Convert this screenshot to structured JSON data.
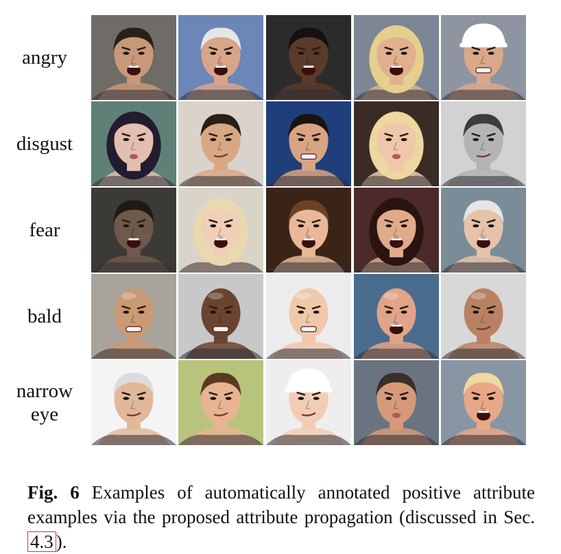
{
  "rows": [
    {
      "label_lines": [
        "angry"
      ],
      "cells": [
        {
          "bg": "#6f6b66",
          "skin": "#c89878",
          "hair": "#2a201a",
          "hair_style": "short",
          "mouth": "open"
        },
        {
          "bg": "#6c86b8",
          "skin": "#d8a48a",
          "hair": "#e6e6e6",
          "hair_style": "short",
          "mouth": "open"
        },
        {
          "bg": "#2b2b2b",
          "skin": "#5a3a28",
          "hair": "#161010",
          "hair_style": "short",
          "mouth": "open"
        },
        {
          "bg": "#7c8694",
          "skin": "#e2b08e",
          "hair": "#e6cf8e",
          "hair_style": "long",
          "mouth": "open"
        },
        {
          "bg": "#8e95a0",
          "skin": "#d9a889",
          "hair": "#ffffff",
          "hair_style": "cap",
          "mouth": "teeth"
        }
      ]
    },
    {
      "label_lines": [
        "disgust"
      ],
      "cells": [
        {
          "bg": "#5f8076",
          "skin": "#e2bfb0",
          "hair": "#221c2e",
          "hair_style": "long",
          "mouth": "pout"
        },
        {
          "bg": "#d9d3cb",
          "skin": "#d8a884",
          "hair": "#2a1e16",
          "hair_style": "short",
          "mouth": "smirk"
        },
        {
          "bg": "#1f3f7a",
          "skin": "#d8a482",
          "hair": "#1a1410",
          "hair_style": "short",
          "mouth": "teeth"
        },
        {
          "bg": "#3a2c24",
          "skin": "#f0c7aa",
          "hair": "#ecd7a0",
          "hair_style": "long",
          "mouth": "pout"
        },
        {
          "bg": "#d2d2d2",
          "skin": "#b4b4b4",
          "hair": "#3c3c3c",
          "hair_style": "short",
          "mouth": "smirk"
        }
      ]
    },
    {
      "label_lines": [
        "fear"
      ],
      "cells": [
        {
          "bg": "#3c3a36",
          "skin": "#6e5a4a",
          "hair": "#1e1a16",
          "hair_style": "short",
          "mouth": "open"
        },
        {
          "bg": "#d9d4c8",
          "skin": "#efcfb6",
          "hair": "#ead8b0",
          "hair_style": "long",
          "mouth": "open"
        },
        {
          "bg": "#3a2418",
          "skin": "#e8b898",
          "hair": "#6a4228",
          "hair_style": "short",
          "mouth": "open"
        },
        {
          "bg": "#4c2a2a",
          "skin": "#e0ab8a",
          "hair": "#2a1410",
          "hair_style": "long",
          "mouth": "open"
        },
        {
          "bg": "#7a8c98",
          "skin": "#e6c2aa",
          "hair": "#e6e6e6",
          "hair_style": "short",
          "mouth": "open"
        }
      ]
    },
    {
      "label_lines": [
        "bald"
      ],
      "cells": [
        {
          "bg": "#a8a49c",
          "skin": "#c99a74",
          "hair": "#c99a74",
          "hair_style": "bald",
          "mouth": "teeth"
        },
        {
          "bg": "#c8c8c8",
          "skin": "#6a4430",
          "hair": "#6a4430",
          "hair_style": "bald",
          "mouth": "teeth"
        },
        {
          "bg": "#ececec",
          "skin": "#f0c8aa",
          "hair": "#f0c8aa",
          "hair_style": "bald",
          "mouth": "teeth"
        },
        {
          "bg": "#4a6c8c",
          "skin": "#e2a488",
          "hair": "#e2a488",
          "hair_style": "bald",
          "mouth": "open"
        },
        {
          "bg": "#d8d8d8",
          "skin": "#b88262",
          "hair": "#b88262",
          "hair_style": "bald",
          "mouth": "smirk"
        }
      ]
    },
    {
      "label_lines": [
        "narrow",
        "eye"
      ],
      "cells": [
        {
          "bg": "#f4f4f4",
          "skin": "#e2b89a",
          "hair": "#dcdcdc",
          "hair_style": "short",
          "mouth": "smirk"
        },
        {
          "bg": "#b8c47c",
          "skin": "#e8b494",
          "hair": "#5a3a22",
          "hair_style": "short",
          "mouth": "smirk"
        },
        {
          "bg": "#eeeeee",
          "skin": "#f2ccb4",
          "hair": "#ffffff",
          "hair_style": "cap",
          "mouth": "smirk"
        },
        {
          "bg": "#6a7480",
          "skin": "#d49a7a",
          "hair": "#3a2e28",
          "hair_style": "short",
          "mouth": "pout"
        },
        {
          "bg": "#8896a4",
          "skin": "#e8a888",
          "hair": "#f0d8a0",
          "hair_style": "short",
          "mouth": "open"
        }
      ]
    }
  ],
  "caption": {
    "fig_label": "Fig. 6",
    "text_before_ref": "Examples of automatically annotated positive attribute examples via the proposed attribute propagation (discussed in Sec.",
    "ref": "4.3",
    "text_after_ref": ")."
  },
  "colors": {
    "ref_box": "#e03030"
  }
}
